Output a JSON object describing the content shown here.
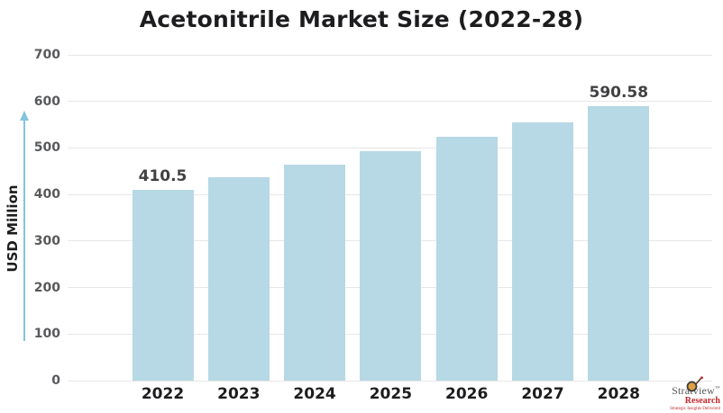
{
  "chart_data": {
    "type": "bar",
    "title": "Acetonitrile Market Size (2022-28)",
    "categories": [
      "2022",
      "2023",
      "2024",
      "2025",
      "2026",
      "2027",
      "2028"
    ],
    "values": [
      410.5,
      436.2,
      463.4,
      492.4,
      523.2,
      555.9,
      590.58
    ],
    "value_labels_shown": [
      "410.5",
      null,
      null,
      null,
      null,
      null,
      "590.58"
    ],
    "xlabel": "",
    "ylabel": "USD Million",
    "ylim": [
      0,
      700
    ],
    "yticks": [
      0,
      100,
      200,
      300,
      400,
      500,
      600,
      700
    ],
    "grid": true,
    "legend": false
  },
  "colors": {
    "bar": "#b7d8e5",
    "grid": "#e7e7e7",
    "arrow": "#85c3dc",
    "tick_text": "#58595b",
    "title_text": "#1d1d1f",
    "data_label_text": "#414042"
  },
  "logo": {
    "brand": "Stratview",
    "tm": "™",
    "sub": "Research",
    "tagline": "Strategic Insights Delivered"
  }
}
